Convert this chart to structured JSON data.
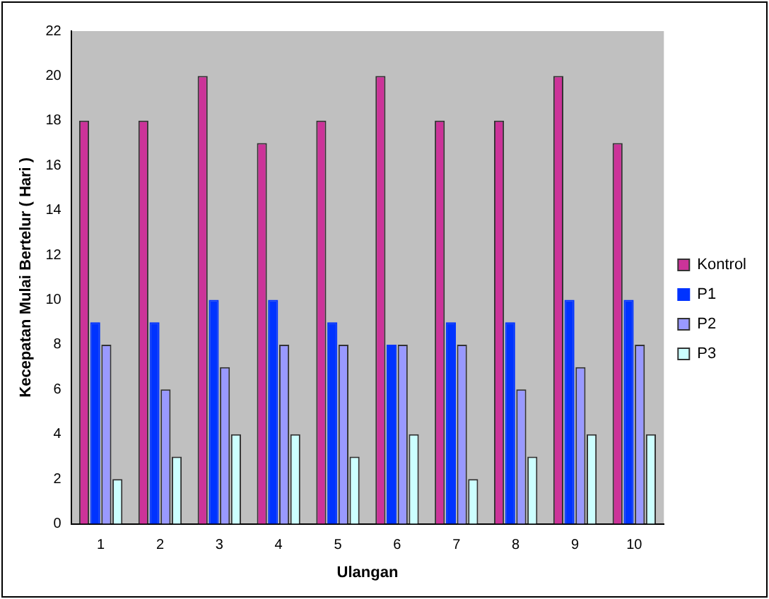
{
  "chart_data": {
    "type": "bar",
    "xlabel": "Ulangan",
    "ylabel": "Kecepatan Mulai Bertelur ( Hari )",
    "categories": [
      "1",
      "2",
      "3",
      "4",
      "5",
      "6",
      "7",
      "8",
      "9",
      "10"
    ],
    "series": [
      {
        "name": "Kontrol",
        "color": "#cc3399",
        "values": [
          18,
          18,
          20,
          17,
          18,
          20,
          18,
          18,
          20,
          17
        ]
      },
      {
        "name": "P1",
        "color": "#0033ff",
        "values": [
          9,
          9,
          10,
          10,
          9,
          8,
          9,
          9,
          10,
          10
        ]
      },
      {
        "name": "P2",
        "color": "#9999ff",
        "values": [
          8,
          6,
          7,
          8,
          8,
          8,
          8,
          6,
          7,
          8
        ]
      },
      {
        "name": "P3",
        "color": "#ccffff",
        "values": [
          2,
          3,
          4,
          4,
          3,
          4,
          2,
          3,
          4,
          4
        ]
      }
    ],
    "ylim": [
      0,
      22
    ],
    "yticks": [
      0,
      2,
      4,
      6,
      8,
      10,
      12,
      14,
      16,
      18,
      20,
      22
    ],
    "grid": false,
    "legend": "right"
  }
}
